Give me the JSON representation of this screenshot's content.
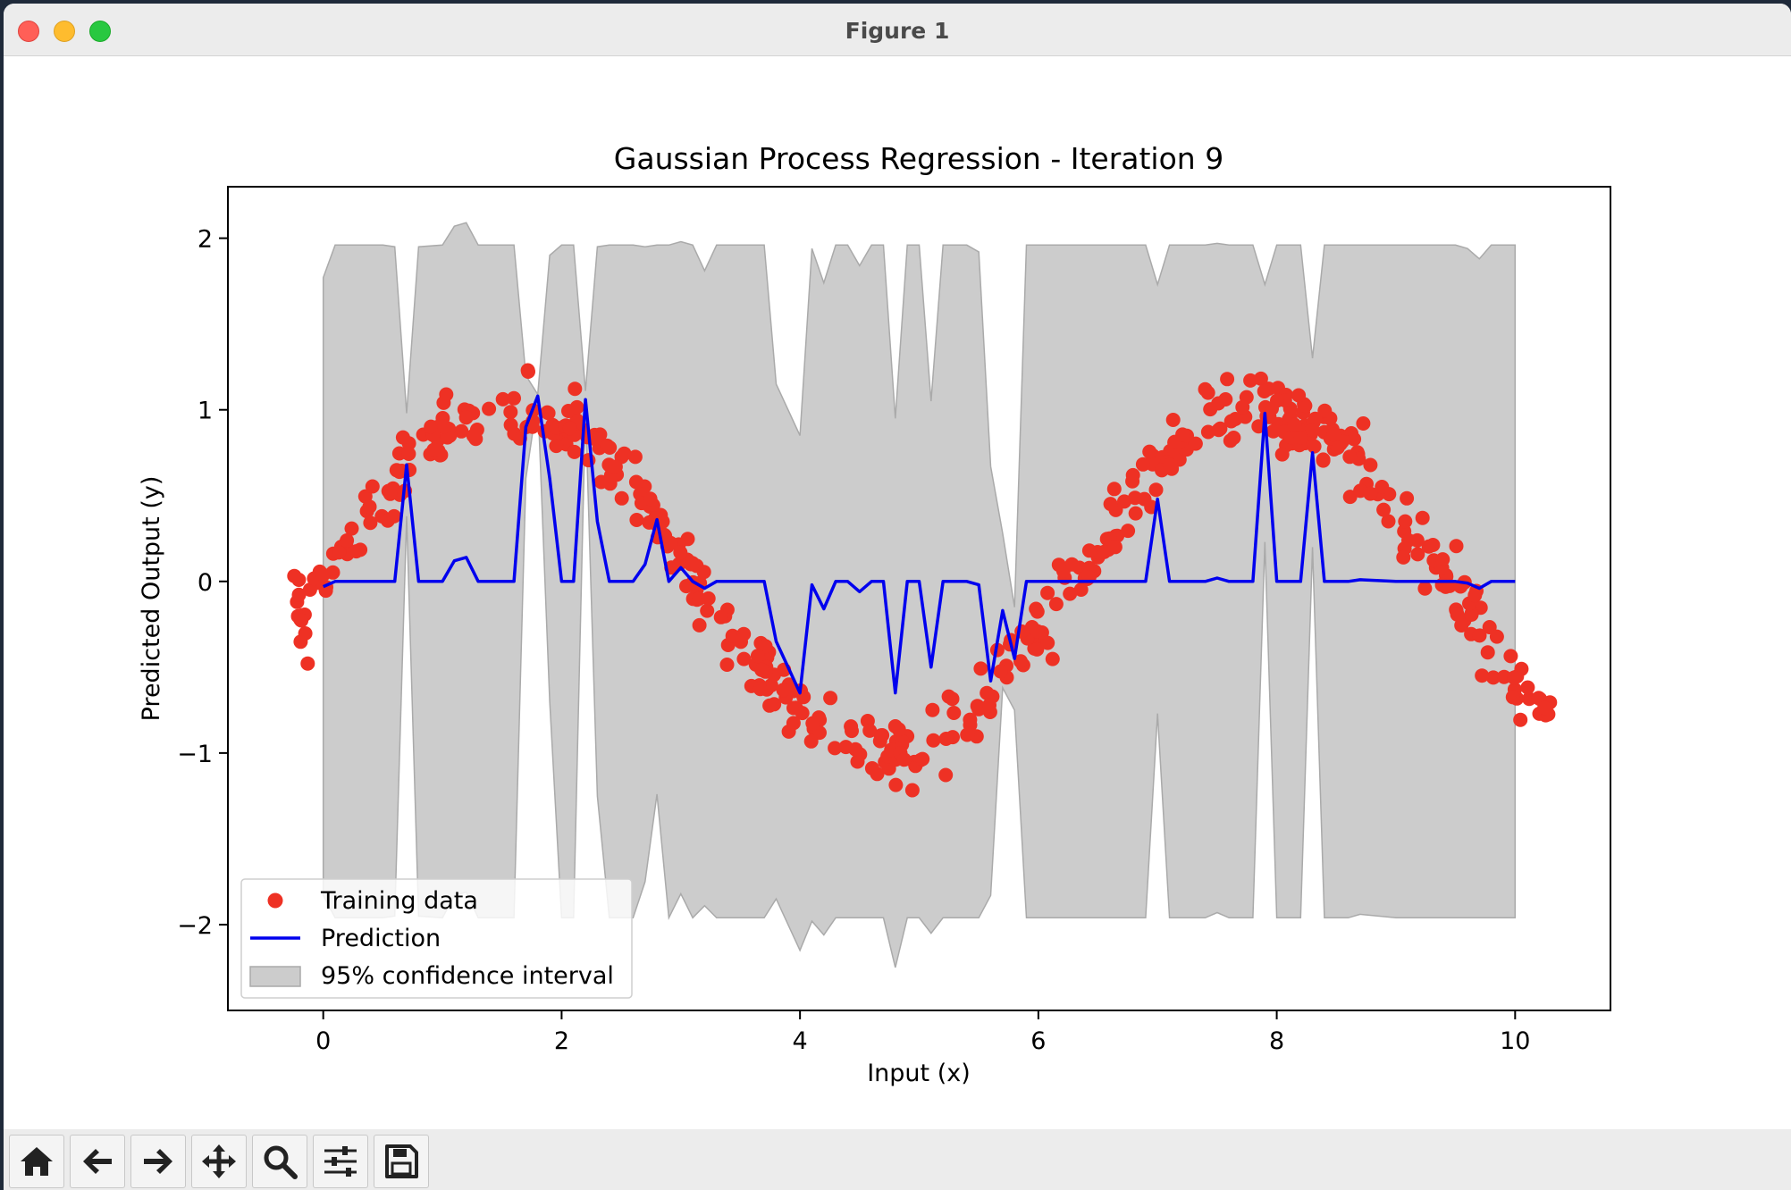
{
  "window": {
    "title": "Figure 1"
  },
  "toolbar": {
    "buttons": [
      {
        "name": "home-icon"
      },
      {
        "name": "arrow-left-icon"
      },
      {
        "name": "arrow-right-icon"
      },
      {
        "name": "move-icon"
      },
      {
        "name": "zoom-icon"
      },
      {
        "name": "sliders-icon"
      },
      {
        "name": "save-icon"
      }
    ]
  },
  "chart_data": {
    "type": "scatter",
    "title": "Gaussian Process Regression - Iteration 9",
    "xlabel": "Input (x)",
    "ylabel": "Predicted Output (y)",
    "xlim": [
      -0.8,
      10.8
    ],
    "ylim": [
      -2.5,
      2.3
    ],
    "xticks": [
      0,
      2,
      4,
      6,
      8,
      10
    ],
    "yticks": [
      -2,
      -1,
      0,
      1,
      2
    ],
    "xtick_labels": [
      "0",
      "2",
      "4",
      "6",
      "8",
      "10"
    ],
    "ytick_labels": [
      "−2",
      "−1",
      "0",
      "1",
      "2"
    ],
    "grid": false,
    "legend_position": "lower-left",
    "colors": {
      "training": "#ee3124",
      "prediction": "#0000ee",
      "ci_fill": "#cccccc",
      "ci_edge": "#aaaaaa"
    },
    "series": [
      {
        "name": "Training data",
        "kind": "scatter",
        "noise_sd": 0.1,
        "x_range": [
          -0.25,
          10.3
        ],
        "approx_function": "sin(x)",
        "count": 500
      },
      {
        "name": "Prediction",
        "kind": "line",
        "x": [
          0,
          0.1,
          0.3,
          0.5,
          0.6,
          0.7,
          0.8,
          1.0,
          1.1,
          1.2,
          1.3,
          1.4,
          1.6,
          1.7,
          1.8,
          1.9,
          2.0,
          2.1,
          2.2,
          2.3,
          2.4,
          2.6,
          2.7,
          2.8,
          2.9,
          3.0,
          3.1,
          3.2,
          3.3,
          3.5,
          3.7,
          3.8,
          4.0,
          4.1,
          4.2,
          4.3,
          4.4,
          4.5,
          4.6,
          4.7,
          4.8,
          4.9,
          5.0,
          5.1,
          5.2,
          5.3,
          5.4,
          5.5,
          5.6,
          5.7,
          5.8,
          5.9,
          6.0,
          6.2,
          6.5,
          6.7,
          6.9,
          7.0,
          7.1,
          7.2,
          7.3,
          7.4,
          7.5,
          7.6,
          7.8,
          7.9,
          8.0,
          8.2,
          8.3,
          8.4,
          8.6,
          8.7,
          9.0,
          9.5,
          9.6,
          9.7,
          9.8,
          10.0
        ],
        "y": [
          -0.03,
          0.0,
          0.0,
          0.0,
          0.0,
          0.68,
          0.0,
          0.0,
          0.12,
          0.14,
          0.0,
          0.0,
          0.0,
          0.9,
          1.08,
          0.6,
          0.0,
          0.0,
          1.06,
          0.35,
          0.0,
          0.0,
          0.1,
          0.36,
          0.0,
          0.08,
          0.0,
          -0.04,
          0.0,
          0.0,
          0.0,
          -0.35,
          -0.65,
          -0.02,
          -0.16,
          0.0,
          0.0,
          -0.06,
          0.0,
          0.0,
          -0.65,
          0.0,
          0.0,
          -0.5,
          0.0,
          0.0,
          0.0,
          -0.02,
          -0.58,
          -0.17,
          -0.45,
          0.0,
          0.0,
          0.0,
          0.0,
          0.0,
          0.0,
          0.48,
          0.0,
          0.0,
          0.0,
          0.0,
          0.02,
          0.0,
          0.0,
          0.98,
          0.0,
          0.0,
          0.75,
          0.0,
          0.0,
          0.01,
          0.0,
          0.0,
          -0.01,
          -0.04,
          0.0,
          0.0
        ]
      },
      {
        "name": "95% confidence interval",
        "kind": "band",
        "x": [
          0,
          0.1,
          0.3,
          0.5,
          0.6,
          0.7,
          0.8,
          1.0,
          1.1,
          1.2,
          1.3,
          1.4,
          1.6,
          1.7,
          1.8,
          1.9,
          2.0,
          2.1,
          2.2,
          2.3,
          2.4,
          2.6,
          2.7,
          2.8,
          2.9,
          3.0,
          3.1,
          3.2,
          3.3,
          3.5,
          3.7,
          3.8,
          4.0,
          4.1,
          4.2,
          4.3,
          4.4,
          4.5,
          4.6,
          4.7,
          4.8,
          4.9,
          5.0,
          5.1,
          5.2,
          5.3,
          5.4,
          5.5,
          5.6,
          5.7,
          5.8,
          5.9,
          6.0,
          6.2,
          6.5,
          6.7,
          6.9,
          7.0,
          7.1,
          7.2,
          7.3,
          7.4,
          7.5,
          7.6,
          7.8,
          7.9,
          8.0,
          8.2,
          8.3,
          8.4,
          8.6,
          8.7,
          9.0,
          9.5,
          9.6,
          9.7,
          9.8,
          10.0
        ],
        "y": [
          -0.03,
          0.0,
          0.0,
          0.0,
          0.0,
          0.68,
          0.0,
          0.0,
          0.12,
          0.14,
          0.0,
          0.0,
          0.0,
          0.9,
          1.08,
          0.6,
          0.0,
          0.0,
          1.06,
          0.35,
          0.0,
          0.0,
          0.1,
          0.36,
          0.0,
          0.08,
          0.0,
          -0.04,
          0.0,
          0.0,
          0.0,
          -0.35,
          -0.65,
          -0.02,
          -0.16,
          0.0,
          0.0,
          -0.06,
          0.0,
          0.0,
          -0.65,
          0.0,
          0.0,
          -0.5,
          0.0,
          0.0,
          0.0,
          -0.02,
          -0.58,
          -0.17,
          -0.45,
          0.0,
          0.0,
          0.0,
          0.0,
          0.0,
          0.0,
          0.48,
          0.0,
          0.0,
          0.0,
          0.0,
          0.02,
          0.0,
          0.0,
          0.98,
          0.0,
          0.0,
          0.75,
          0.0,
          0.0,
          0.01,
          0.0,
          0.0,
          -0.01,
          -0.04,
          0.0,
          0.0
        ],
        "half_width": [
          1.8,
          1.96,
          1.96,
          1.96,
          1.95,
          0.3,
          1.95,
          1.96,
          1.95,
          1.95,
          1.96,
          1.96,
          1.96,
          0.3,
          0.01,
          1.3,
          1.96,
          1.96,
          0.05,
          1.6,
          1.96,
          1.96,
          1.85,
          1.6,
          1.96,
          1.9,
          1.96,
          1.85,
          1.96,
          1.96,
          1.96,
          1.5,
          1.5,
          1.96,
          1.9,
          1.96,
          1.96,
          1.9,
          1.96,
          1.96,
          1.6,
          1.96,
          1.96,
          1.55,
          1.96,
          1.96,
          1.96,
          1.94,
          1.25,
          0.45,
          0.3,
          1.96,
          1.96,
          1.96,
          1.96,
          1.96,
          1.96,
          1.25,
          1.96,
          1.96,
          1.96,
          1.96,
          1.95,
          1.96,
          1.96,
          0.75,
          1.96,
          1.96,
          0.55,
          1.96,
          1.96,
          1.95,
          1.96,
          1.96,
          1.95,
          1.92,
          1.96,
          1.96
        ]
      }
    ]
  }
}
